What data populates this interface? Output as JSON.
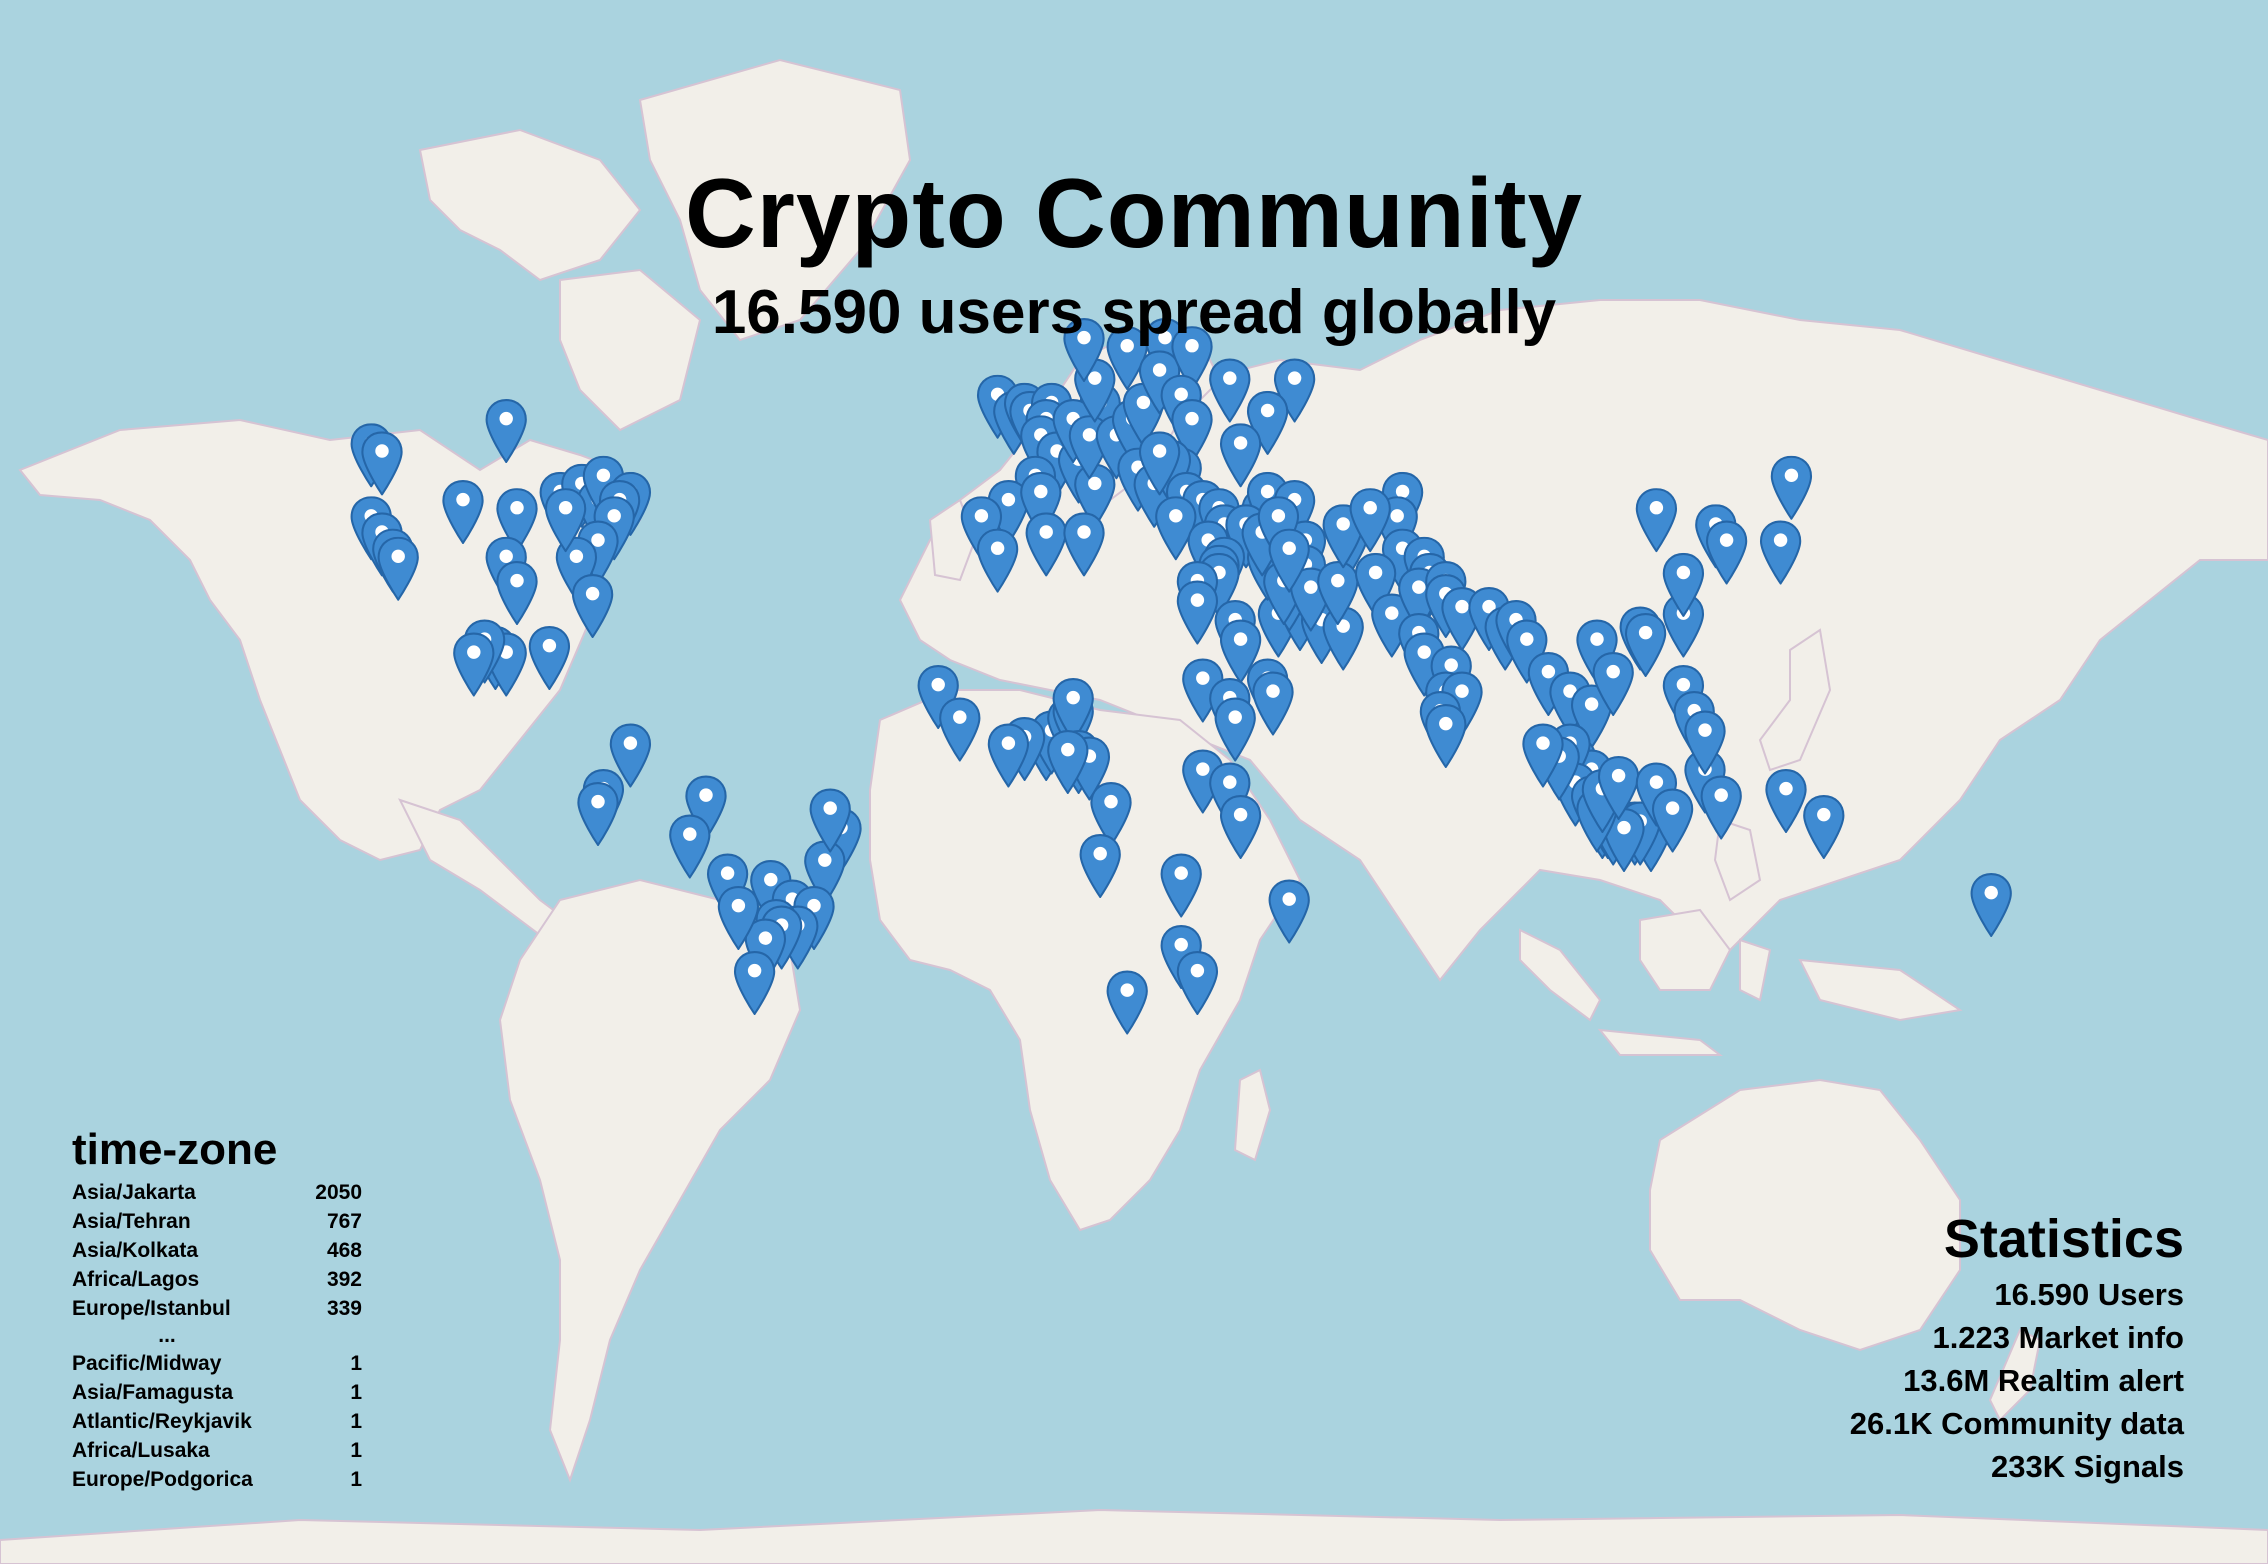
{
  "title": "Crypto Community",
  "subtitle": "16.590 users spread globally",
  "colors": {
    "ocean": "#aad3df",
    "land": "#f2efe9",
    "border": "#d8c7d6",
    "marker": "#3f8bd2",
    "marker_outline": "#2566a8"
  },
  "marker_icon": "map-pin-icon",
  "timezones": {
    "heading": "time-zone",
    "top": [
      {
        "name": "Asia/Jakarta",
        "count": "2050"
      },
      {
        "name": "Asia/Tehran",
        "count": "767"
      },
      {
        "name": "Asia/Kolkata",
        "count": "468"
      },
      {
        "name": "Africa/Lagos",
        "count": "392"
      },
      {
        "name": "Europe/Istanbul",
        "count": "339"
      }
    ],
    "ellipsis": "...",
    "bottom": [
      {
        "name": "Pacific/Midway",
        "count": "1"
      },
      {
        "name": "Asia/Famagusta",
        "count": "1"
      },
      {
        "name": "Atlantic/Reykjavik",
        "count": "1"
      },
      {
        "name": "Africa/Lusaka",
        "count": "1"
      },
      {
        "name": "Europe/Podgorica",
        "count": "1"
      }
    ]
  },
  "statistics": {
    "heading": "Statistics",
    "items": [
      "16.590 Users",
      "1.223 Market info",
      "13.6M Realtim alert",
      "26.1K Community data",
      "233K Signals"
    ]
  },
  "markers": [
    [
      47,
      -122
    ],
    [
      46,
      -120
    ],
    [
      38,
      -122
    ],
    [
      36,
      -120
    ],
    [
      34,
      -118
    ],
    [
      33,
      -117
    ],
    [
      50,
      -97
    ],
    [
      40,
      -105
    ],
    [
      39,
      -95
    ],
    [
      33,
      -97
    ],
    [
      30,
      -95
    ],
    [
      41,
      -87
    ],
    [
      42,
      -83
    ],
    [
      40,
      -80
    ],
    [
      43,
      -79
    ],
    [
      41,
      -74
    ],
    [
      40,
      -76
    ],
    [
      38,
      -77
    ],
    [
      35,
      -80
    ],
    [
      33,
      -84
    ],
    [
      28,
      -81
    ],
    [
      39,
      -86
    ],
    [
      20,
      -99
    ],
    [
      19,
      -97
    ],
    [
      21,
      -101
    ],
    [
      19,
      -103
    ],
    [
      20,
      -89
    ],
    [
      5,
      -74
    ],
    [
      -2,
      -79
    ],
    [
      -4,
      -80
    ],
    [
      -3,
      -60
    ],
    [
      -9,
      -63
    ],
    [
      -8,
      -35
    ],
    [
      -13,
      -38
    ],
    [
      -5,
      -37
    ],
    [
      -16,
      -48
    ],
    [
      -19,
      -44
    ],
    [
      -20,
      -40
    ],
    [
      -23,
      -43
    ],
    [
      -22,
      -47
    ],
    [
      -23,
      -46
    ],
    [
      -25,
      -49
    ],
    [
      -30,
      -51
    ],
    [
      -15,
      -56
    ],
    [
      -20,
      -54
    ],
    [
      53,
      -6
    ],
    [
      51,
      -3
    ],
    [
      52,
      -1
    ],
    [
      51,
      0
    ],
    [
      52,
      4
    ],
    [
      50,
      3
    ],
    [
      48,
      2
    ],
    [
      46,
      5
    ],
    [
      43,
      1
    ],
    [
      40,
      -4
    ],
    [
      38,
      -9
    ],
    [
      41,
      2
    ],
    [
      45,
      9
    ],
    [
      42,
      12
    ],
    [
      52,
      13
    ],
    [
      50,
      8
    ],
    [
      48,
      11
    ],
    [
      48,
      16
    ],
    [
      50,
      19
    ],
    [
      52,
      21
    ],
    [
      55,
      12
    ],
    [
      59,
      18
    ],
    [
      60,
      10
    ],
    [
      60,
      25
    ],
    [
      56,
      24
    ],
    [
      55,
      37
    ],
    [
      59,
      30
    ],
    [
      53,
      28
    ],
    [
      50,
      30
    ],
    [
      55,
      49
    ],
    [
      51,
      44
    ],
    [
      47,
      39
    ],
    [
      44,
      28
    ],
    [
      44,
      20
    ],
    [
      42,
      23
    ],
    [
      45,
      26
    ],
    [
      46,
      24
    ],
    [
      41,
      29
    ],
    [
      40,
      32
    ],
    [
      39,
      35
    ],
    [
      38,
      27
    ],
    [
      37,
      36
    ],
    [
      39,
      43
    ],
    [
      41,
      44
    ],
    [
      40,
      49
    ],
    [
      37,
      40
    ],
    [
      35,
      33
    ],
    [
      33,
      36
    ],
    [
      32,
      35
    ],
    [
      31,
      35
    ],
    [
      30,
      31
    ],
    [
      27,
      31
    ],
    [
      24,
      38
    ],
    [
      21,
      39
    ],
    [
      25,
      46
    ],
    [
      26,
      50
    ],
    [
      24,
      54
    ],
    [
      23,
      58
    ],
    [
      15,
      44
    ],
    [
      13,
      45
    ],
    [
      29,
      48
    ],
    [
      33,
      44
    ],
    [
      36,
      43
    ],
    [
      30,
      47
    ],
    [
      35,
      51
    ],
    [
      32,
      51
    ],
    [
      38,
      46
    ],
    [
      36,
      59
    ],
    [
      29,
      52
    ],
    [
      30,
      57
    ],
    [
      34,
      48
    ],
    [
      37,
      58
    ],
    [
      41,
      69
    ],
    [
      38,
      68
    ],
    [
      39,
      63
    ],
    [
      34,
      69
    ],
    [
      31,
      64
    ],
    [
      33,
      73
    ],
    [
      31,
      74
    ],
    [
      25,
      67
    ],
    [
      29,
      72
    ],
    [
      30,
      77
    ],
    [
      28,
      77
    ],
    [
      26,
      80
    ],
    [
      26,
      85
    ],
    [
      23,
      88
    ],
    [
      22,
      72
    ],
    [
      19,
      73
    ],
    [
      17,
      78
    ],
    [
      13,
      77
    ],
    [
      13,
      80
    ],
    [
      10,
      76
    ],
    [
      8,
      77
    ],
    [
      24,
      90
    ],
    [
      21,
      92
    ],
    [
      16,
      96
    ],
    [
      13,
      100
    ],
    [
      11,
      104
    ],
    [
      21,
      105
    ],
    [
      16,
      108
    ],
    [
      3,
      101
    ],
    [
      1,
      104
    ],
    [
      5,
      100
    ],
    [
      -1,
      101
    ],
    [
      -3,
      104
    ],
    [
      -6,
      106
    ],
    [
      -7,
      110
    ],
    [
      -7,
      112
    ],
    [
      -8,
      115
    ],
    [
      -6,
      107
    ],
    [
      -7,
      108
    ],
    [
      -7,
      113
    ],
    [
      -8,
      110
    ],
    [
      -5,
      105
    ],
    [
      -2,
      106
    ],
    [
      0,
      109
    ],
    [
      3,
      98
    ],
    [
      5,
      95
    ],
    [
      -1,
      116
    ],
    [
      -5,
      119
    ],
    [
      1,
      125
    ],
    [
      -3,
      128
    ],
    [
      14,
      121
    ],
    [
      10,
      123
    ],
    [
      7,
      125
    ],
    [
      23,
      113
    ],
    [
      22,
      114
    ],
    [
      25,
      121
    ],
    [
      31,
      121
    ],
    [
      39,
      116
    ],
    [
      37,
      127
    ],
    [
      35,
      129
    ],
    [
      35,
      139
    ],
    [
      43,
      141
    ],
    [
      -2,
      140
    ],
    [
      -6,
      147
    ],
    [
      -18,
      178
    ],
    [
      6,
      3
    ],
    [
      7,
      4
    ],
    [
      9,
      7
    ],
    [
      10,
      8
    ],
    [
      12,
      8
    ],
    [
      6,
      -1
    ],
    [
      5,
      -4
    ],
    [
      14,
      -17
    ],
    [
      9,
      -13
    ],
    [
      4,
      9
    ],
    [
      3,
      11
    ],
    [
      4,
      7
    ],
    [
      15,
      32
    ],
    [
      12,
      37
    ],
    [
      9,
      38
    ],
    [
      1,
      32
    ],
    [
      -1,
      37
    ],
    [
      -6,
      39
    ],
    [
      -15,
      28
    ],
    [
      -26,
      28
    ],
    [
      -33,
      18
    ],
    [
      -30,
      31
    ],
    [
      36,
      3
    ],
    [
      34,
      -6
    ],
    [
      36,
      10
    ],
    [
      -4,
      15
    ],
    [
      -12,
      13
    ],
    [
      -19,
      48
    ]
  ]
}
